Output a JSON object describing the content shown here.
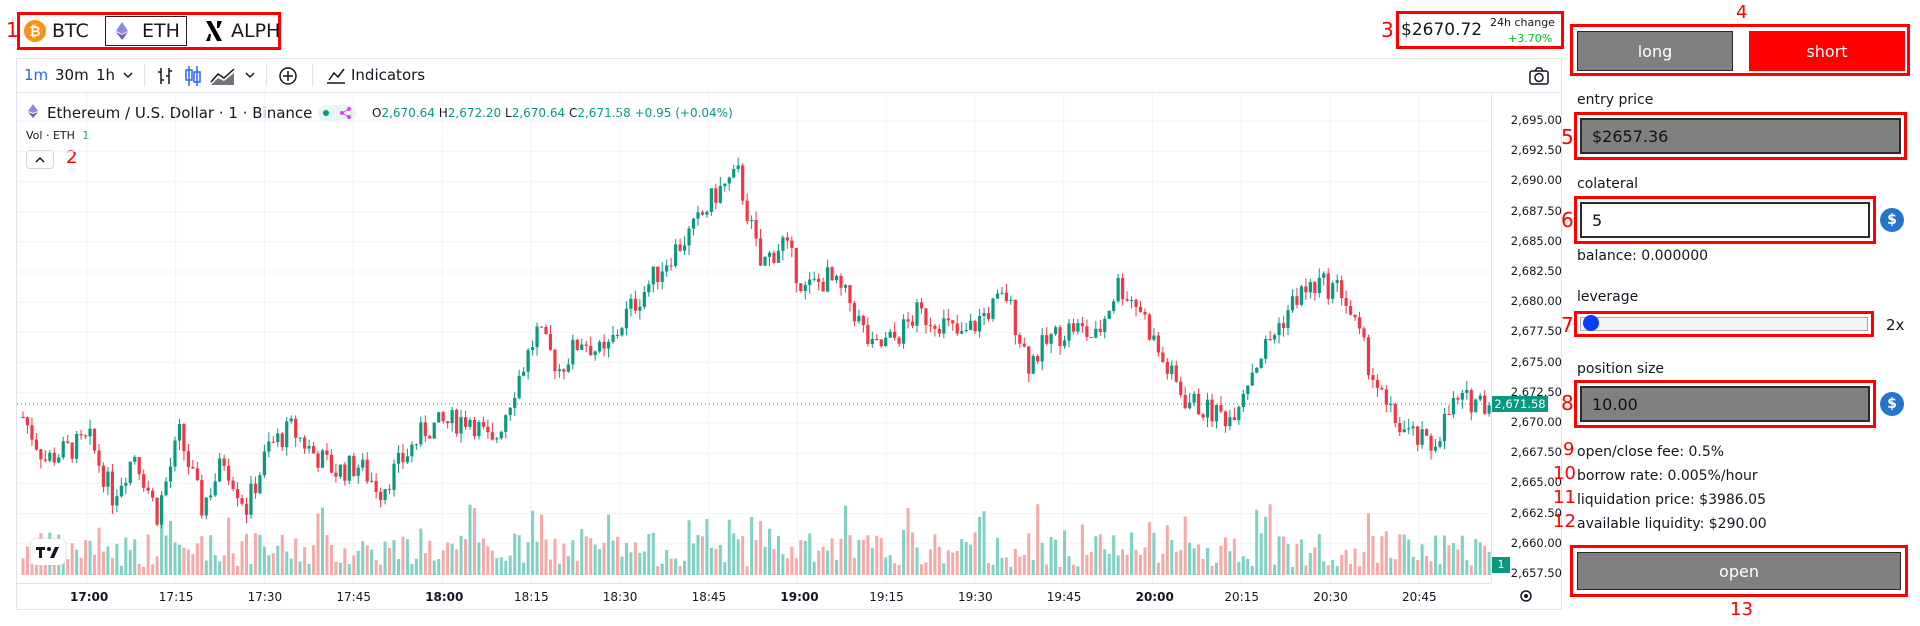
{
  "tokens": [
    {
      "symbol": "BTC",
      "icon": "bitcoin-icon"
    },
    {
      "symbol": "ETH",
      "icon": "ethereum-icon"
    },
    {
      "symbol": "ALPH",
      "icon": "alephium-icon"
    }
  ],
  "price": {
    "current": "$2670.72",
    "change_label": "24h change",
    "change_value": "+3.70%"
  },
  "toolbar": {
    "timeframes": [
      "1m",
      "30m",
      "1h"
    ],
    "indicators_label": "Indicators"
  },
  "chart_header": {
    "pair": "Ethereum / U.S. Dollar · 1 · Binance",
    "ohlc": {
      "o_label": "O",
      "o": "2,670.64",
      "h_label": "H",
      "h": "2,672.20",
      "l_label": "L",
      "l": "2,670.64",
      "c_label": "C",
      "c": "2,671.58",
      "change": "+0.95 (+0.04%)"
    },
    "vol_label": "Vol · ETH",
    "vol_value": "1",
    "collapse_glyph": "^"
  },
  "chart_data": {
    "type": "candlestick",
    "y_ticks": [
      "2,695.00",
      "2,692.50",
      "2,690.00",
      "2,687.50",
      "2,685.00",
      "2,682.50",
      "2,680.00",
      "2,677.50",
      "2,675.00",
      "2,672.50",
      "2,670.00",
      "2,667.50",
      "2,665.00",
      "2,662.50",
      "2,660.00",
      "2,657.50"
    ],
    "ylim": [
      2657.5,
      2695.0
    ],
    "x_ticks": [
      "17:00",
      "17:15",
      "17:30",
      "17:45",
      "18:00",
      "18:15",
      "18:30",
      "18:45",
      "19:00",
      "19:15",
      "19:30",
      "19:45",
      "20:00",
      "20:15",
      "20:30",
      "20:45"
    ],
    "bold_x_ticks": [
      "17:00",
      "18:00",
      "19:00",
      "20:00"
    ],
    "last_price_label": "2,671.58",
    "last_price": 2671.58,
    "volume_label": "1",
    "close_path": [
      [
        0,
        2670.5
      ],
      [
        5,
        2667
      ],
      [
        10,
        2667.8
      ],
      [
        15,
        2668.5
      ],
      [
        20,
        2664
      ],
      [
        25,
        2667.5
      ],
      [
        30,
        2662.5
      ],
      [
        35,
        2669
      ],
      [
        40,
        2663
      ],
      [
        45,
        2667
      ],
      [
        50,
        2663
      ],
      [
        55,
        2668
      ],
      [
        60,
        2669.5
      ],
      [
        65,
        2667.5
      ],
      [
        70,
        2666
      ],
      [
        75,
        2666.5
      ],
      [
        80,
        2664.5
      ],
      [
        85,
        2667
      ],
      [
        90,
        2669.5
      ],
      [
        95,
        2670
      ],
      [
        100,
        2670.5
      ],
      [
        105,
        2668
      ],
      [
        110,
        2673
      ],
      [
        115,
        2677.5
      ],
      [
        120,
        2674.5
      ],
      [
        125,
        2677
      ],
      [
        130,
        2675.5
      ],
      [
        135,
        2679
      ],
      [
        140,
        2681.5
      ],
      [
        145,
        2684
      ],
      [
        150,
        2686
      ],
      [
        155,
        2689
      ],
      [
        160,
        2690.5
      ],
      [
        165,
        2683
      ],
      [
        170,
        2685
      ],
      [
        175,
        2681
      ],
      [
        180,
        2682
      ],
      [
        185,
        2680
      ],
      [
        190,
        2676
      ],
      [
        195,
        2677
      ],
      [
        200,
        2679
      ],
      [
        205,
        2678.5
      ],
      [
        210,
        2677
      ],
      [
        215,
        2679
      ],
      [
        220,
        2680.5
      ],
      [
        225,
        2675
      ],
      [
        230,
        2677
      ],
      [
        235,
        2678
      ],
      [
        240,
        2677
      ],
      [
        245,
        2681.5
      ],
      [
        250,
        2679.5
      ],
      [
        255,
        2675
      ],
      [
        260,
        2672
      ],
      [
        265,
        2671
      ],
      [
        270,
        2670.5
      ],
      [
        275,
        2674.5
      ],
      [
        280,
        2677.5
      ],
      [
        285,
        2680.5
      ],
      [
        290,
        2681.5
      ],
      [
        295,
        2681
      ],
      [
        300,
        2676
      ],
      [
        305,
        2671
      ],
      [
        310,
        2669
      ],
      [
        315,
        2668
      ],
      [
        320,
        2671.5
      ],
      [
        325,
        2672
      ],
      [
        330,
        2671.5
      ]
    ],
    "colors": {
      "up": "#089981",
      "down": "#f23645",
      "vol_up": "#7fd1c3",
      "vol_down": "#f7a9a7",
      "last_price": "#089981"
    }
  },
  "trade_panel": {
    "long_label": "long",
    "short_label": "short",
    "entry_price_label": "entry price",
    "entry_price_value": "$2657.36",
    "collateral_label": "colateral",
    "collateral_value": "5",
    "balance_text": "balance: 0.000000",
    "leverage_label": "leverage",
    "leverage_value": "2x",
    "leverage_fraction": 0.0,
    "position_size_label": "position size",
    "position_size_value": "10.00",
    "fee_text": "open/close fee: 0.5%",
    "borrow_text": "borrow rate: 0.005%/hour",
    "liquidation_text": "liquidation price: $3986.05",
    "liquidity_text": "available liquidity: $290.00",
    "open_label": "open",
    "usd_glyph": "$"
  },
  "markers": [
    "1",
    "2",
    "3",
    "4",
    "5",
    "6",
    "7",
    "8",
    "9",
    "10",
    "11",
    "12",
    "13"
  ],
  "colors": {
    "accent_red": "#ff0000",
    "short_red": "#ff0000",
    "field_gray": "#808080",
    "tv_blue": "#2962ff",
    "usdc_blue": "#2775ca"
  }
}
